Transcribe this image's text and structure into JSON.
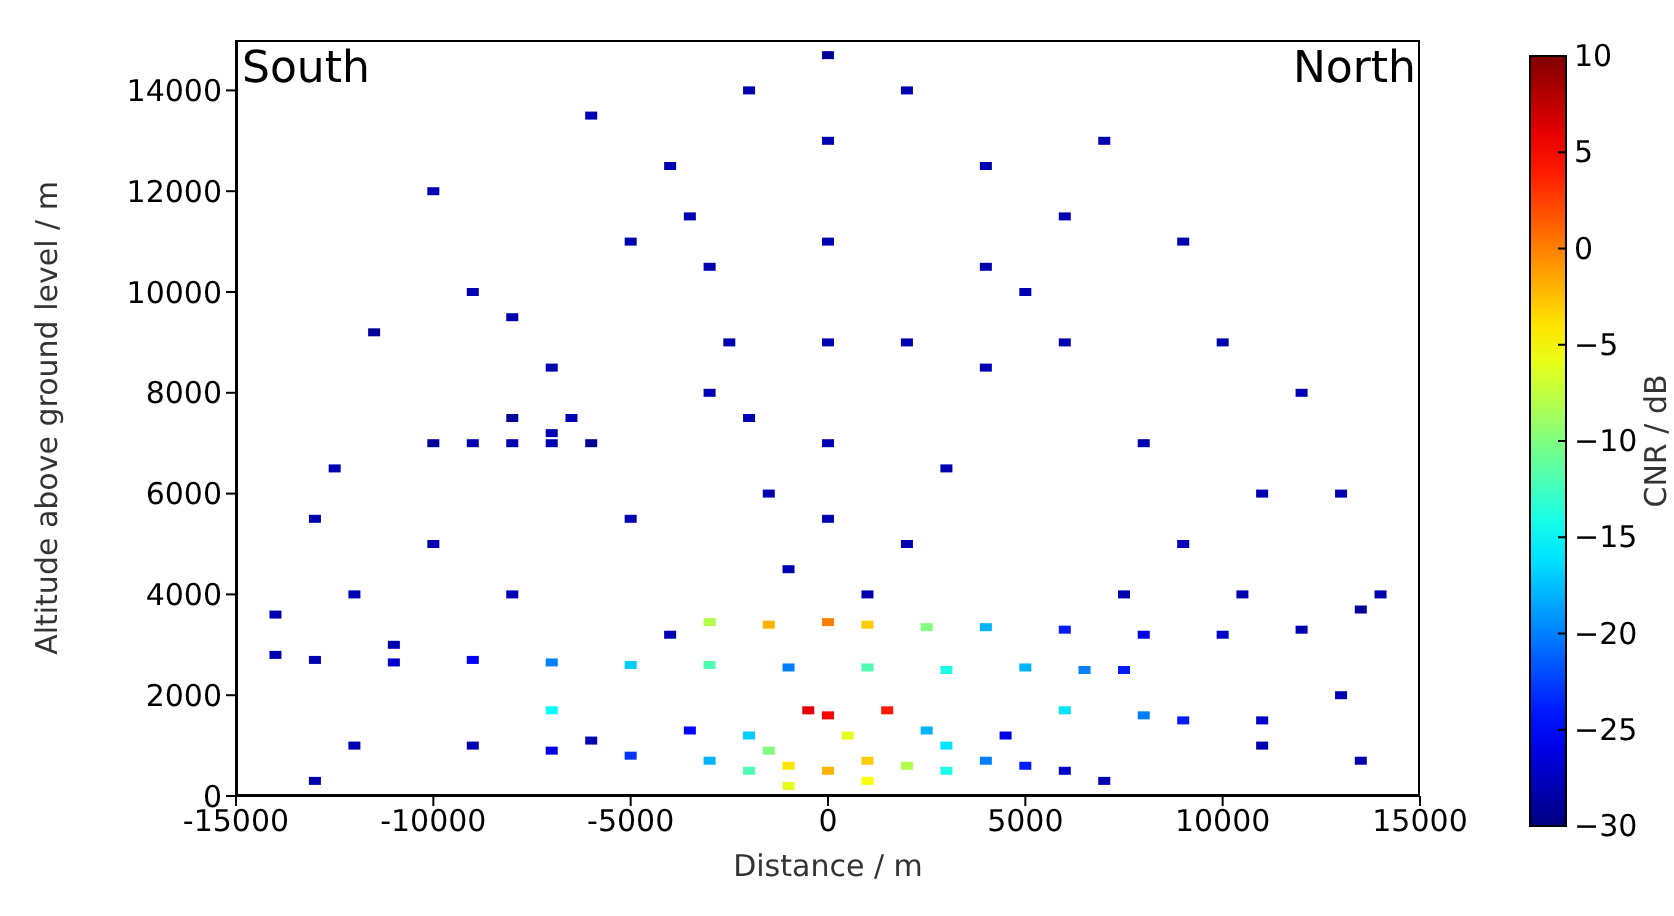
{
  "chart_data": {
    "type": "scatter",
    "xlabel": "Distance / m",
    "ylabel": "Altitude above ground level / m",
    "clabel": "CNR / dB",
    "annotations": [
      "South",
      "North"
    ],
    "xlim": [
      -15000,
      15000
    ],
    "xticks": [
      -15000,
      -10000,
      -5000,
      0,
      5000,
      10000,
      15000
    ],
    "ylim": [
      0,
      15000
    ],
    "yticks": [
      0,
      2000,
      4000,
      6000,
      8000,
      10000,
      12000,
      14000
    ],
    "clim": [
      -30,
      10
    ],
    "cticks": [
      -30,
      -25,
      -20,
      -15,
      -10,
      -5,
      0,
      5,
      10
    ],
    "grid": false,
    "legend": false,
    "marker": "square",
    "x": [
      -9000,
      -7000,
      -5000,
      -3000,
      -2000,
      -1000,
      0,
      1000,
      2000,
      3000,
      4000,
      5000,
      6000,
      7000,
      -1000,
      500,
      -2000,
      2500,
      0,
      -500,
      1500,
      -3500,
      4500,
      -6000,
      1000,
      -1500,
      3000,
      -13000,
      -11000,
      -9000,
      -7000,
      -5000,
      -3000,
      -1000,
      1000,
      3000,
      5000,
      6500,
      7500,
      -3000,
      -1500,
      0,
      1000,
      2500,
      4000,
      6000,
      8000,
      10000,
      12000,
      13500,
      6000,
      8000,
      9000,
      11000,
      -7000,
      -10000,
      -9000,
      -8000,
      -7000,
      -6000,
      -8000,
      -6500,
      -7000,
      -4000,
      -3500,
      -3000,
      -2500,
      -2000,
      -1500,
      -1000,
      7000,
      6000,
      5000,
      4000,
      3000,
      2000,
      1000,
      0,
      0,
      0,
      0,
      0,
      0,
      -11500,
      -13000,
      -12000,
      -14000,
      -10000,
      -9000,
      -8000,
      -12500,
      -6000,
      -2000,
      2000,
      4000,
      9000,
      10000,
      12000,
      13000,
      14000,
      13000,
      11000,
      9000,
      8000,
      6000,
      -5000,
      -7000,
      -10000,
      -11000,
      -8000,
      -5000,
      -3000,
      2000,
      4000,
      11000,
      -13000,
      -12000,
      13500,
      -4000,
      7500,
      10500,
      -14000
    ],
    "values": [
      1000,
      900,
      800,
      700,
      500,
      600,
      500,
      700,
      600,
      500,
      700,
      600,
      500,
      300,
      200,
      1200,
      1200,
      1300,
      1600,
      1700,
      1700,
      1300,
      1200,
      1100,
      300,
      900,
      1000,
      2700,
      2650,
      2700,
      2650,
      2600,
      2600,
      2550,
      2550,
      2500,
      2550,
      2500,
      2500,
      3450,
      3400,
      3450,
      3400,
      3350,
      3350,
      3300,
      3200,
      3200,
      3300,
      3700,
      1700,
      1600,
      1500,
      1500,
      1700,
      7000,
      7000,
      7000,
      7000,
      7000,
      7500,
      7500,
      7200,
      12500,
      11500,
      10500,
      9000,
      7500,
      6000,
      4500,
      13000,
      11500,
      10000,
      8500,
      6500,
      5000,
      4000,
      14700,
      13000,
      11000,
      9000,
      7000,
      5500,
      9200,
      5500,
      4000,
      2800,
      12000,
      10000,
      9500,
      6500,
      13500,
      14000,
      14000,
      12500,
      11000,
      9000,
      8000,
      6000,
      4000,
      2000,
      1000,
      5000,
      7000,
      9000,
      11000,
      8500,
      5000,
      3000,
      4000,
      5500,
      8000,
      9000,
      10500,
      6000,
      300,
      1000,
      700,
      3200,
      4000,
      4000,
      3600
    ],
    "cvalues": [
      -28,
      -26,
      -23,
      -18,
      -12,
      -4,
      -2,
      -3,
      -8,
      -14,
      -20,
      -24,
      -27,
      -28,
      -6,
      -6,
      -17,
      -18,
      5,
      6,
      4,
      -25,
      -26,
      -28,
      -5,
      -10,
      -16,
      -28,
      -27,
      -25,
      -20,
      -17,
      -12,
      -20,
      -12,
      -14,
      -18,
      -20,
      -24,
      -8,
      -2,
      0,
      -3,
      -10,
      -18,
      -24,
      -26,
      -27,
      -28,
      -29,
      -16,
      -20,
      -24,
      -27,
      -15,
      -29,
      -28,
      -28,
      -28,
      -29,
      -29,
      -28,
      -28,
      -28,
      -28,
      -28,
      -28,
      -28,
      -28,
      -28,
      -28,
      -28,
      -28,
      -28,
      -28,
      -28,
      -28,
      -29,
      -28,
      -28,
      -28,
      -28,
      -28,
      -29,
      -28,
      -28,
      -28,
      -28,
      -28,
      -28,
      -28,
      -28,
      -28,
      -28,
      -28,
      -28,
      -28,
      -28,
      -28,
      -28,
      -28,
      -28,
      -28,
      -28,
      -28,
      -28,
      -28,
      -28,
      -28,
      -28,
      -28,
      -28,
      -28,
      -28,
      -28,
      -28,
      -28,
      -28,
      -28,
      -28,
      -28,
      -28
    ]
  }
}
